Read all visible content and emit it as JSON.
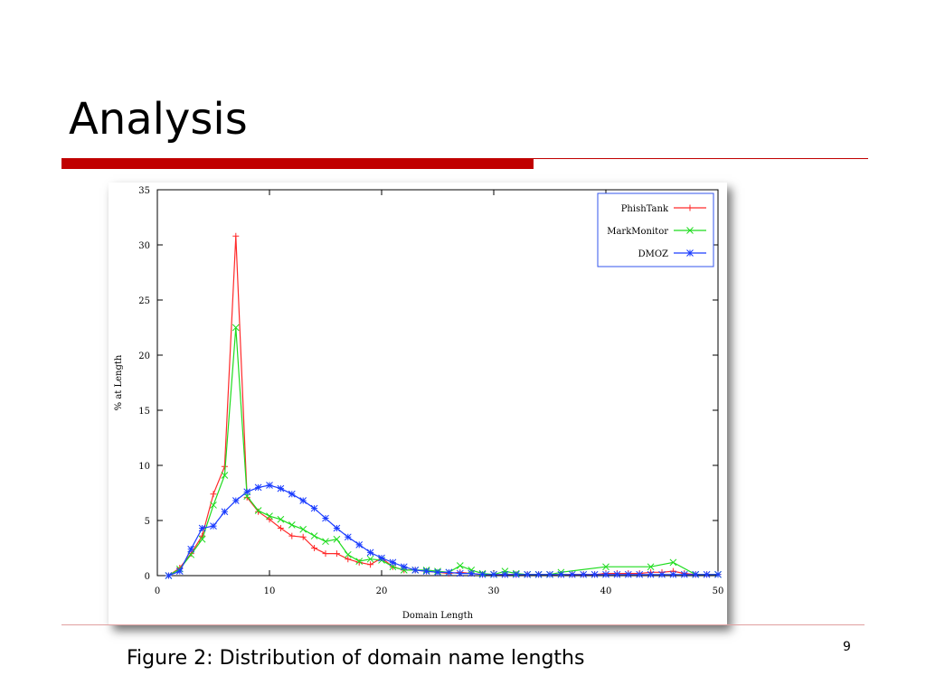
{
  "slide": {
    "title": "Analysis",
    "caption": "Figure 2: Distribution of domain name lengths",
    "page_number": "9"
  },
  "colors": {
    "accent": "#c00000",
    "phishtank": "#ff2a2a",
    "markmonitor": "#1fdc1f",
    "dmoz": "#1a3cff"
  },
  "chart_data": {
    "type": "line",
    "xlabel": "Domain Length",
    "ylabel": "% at Length",
    "xlim": [
      0,
      50
    ],
    "ylim": [
      0,
      35
    ],
    "xticks": [
      0,
      10,
      20,
      30,
      40,
      50
    ],
    "yticks": [
      0,
      5,
      10,
      15,
      20,
      25,
      30,
      35
    ],
    "grid": false,
    "legend_position": "top-right",
    "series": [
      {
        "name": "PhishTank",
        "color": "#ff2a2a",
        "marker": "plus",
        "x": [
          1,
          2,
          3,
          4,
          5,
          6,
          7,
          8,
          9,
          10,
          11,
          12,
          13,
          14,
          15,
          16,
          17,
          18,
          19,
          20,
          21,
          22,
          23,
          24,
          25,
          26,
          27,
          28,
          29,
          30,
          31,
          32,
          33,
          34,
          35,
          36,
          37,
          38,
          39,
          40,
          41,
          42,
          43,
          44,
          45,
          46,
          47,
          48,
          49,
          50
        ],
        "y": [
          0,
          0.7,
          2,
          3.6,
          7.4,
          9.9,
          30.8,
          7.1,
          5.8,
          5.1,
          4.3,
          3.6,
          3.5,
          2.5,
          2.0,
          2.0,
          1.5,
          1.2,
          1.0,
          1.6,
          0.8,
          0.5,
          0.5,
          0.4,
          0.3,
          0.2,
          0.3,
          0.2,
          0.1,
          0.1,
          0.1,
          0.1,
          0.1,
          0.1,
          0.1,
          0.1,
          0.1,
          0.1,
          0.1,
          0.2,
          0.2,
          0.2,
          0.2,
          0.3,
          0.3,
          0.4,
          0.2,
          0.1,
          0.1,
          0.1
        ]
      },
      {
        "name": "MarkMonitor",
        "color": "#1fdc1f",
        "marker": "cross",
        "x": [
          1,
          2,
          3,
          4,
          5,
          6,
          7,
          8,
          9,
          10,
          11,
          12,
          13,
          14,
          15,
          16,
          17,
          18,
          19,
          20,
          21,
          22,
          23,
          24,
          25,
          26,
          27,
          28,
          29,
          30,
          31,
          32,
          33,
          34,
          35,
          36,
          40,
          44,
          46,
          48,
          50
        ],
        "y": [
          0,
          0.6,
          1.9,
          3.3,
          6.4,
          9.1,
          22.5,
          7.2,
          5.9,
          5.4,
          5.1,
          4.6,
          4.2,
          3.6,
          3.1,
          3.3,
          1.9,
          1.3,
          1.5,
          1.4,
          0.8,
          0.5,
          0.5,
          0.5,
          0.4,
          0.3,
          0.9,
          0.5,
          0.2,
          0.1,
          0.4,
          0.2,
          0.1,
          0.1,
          0.1,
          0.3,
          0.8,
          0.8,
          1.2,
          0.1,
          0.1
        ]
      },
      {
        "name": "DMOZ",
        "color": "#1a3cff",
        "marker": "star",
        "x": [
          1,
          2,
          3,
          4,
          5,
          6,
          7,
          8,
          9,
          10,
          11,
          12,
          13,
          14,
          15,
          16,
          17,
          18,
          19,
          20,
          21,
          22,
          23,
          24,
          25,
          26,
          27,
          28,
          29,
          30,
          31,
          32,
          33,
          34,
          35,
          36,
          37,
          38,
          39,
          40,
          41,
          42,
          43,
          44,
          45,
          46,
          47,
          48,
          49,
          50
        ],
        "y": [
          0,
          0.4,
          2.4,
          4.3,
          4.5,
          5.8,
          6.8,
          7.6,
          8.0,
          8.2,
          7.9,
          7.4,
          6.8,
          6.1,
          5.2,
          4.3,
          3.5,
          2.8,
          2.1,
          1.6,
          1.2,
          0.8,
          0.5,
          0.4,
          0.3,
          0.3,
          0.2,
          0.2,
          0.1,
          0.1,
          0.1,
          0.1,
          0.1,
          0.1,
          0.1,
          0.1,
          0.1,
          0.1,
          0.1,
          0.1,
          0.1,
          0.1,
          0.1,
          0.1,
          0.1,
          0.1,
          0.1,
          0.1,
          0.1,
          0.1
        ]
      }
    ]
  }
}
